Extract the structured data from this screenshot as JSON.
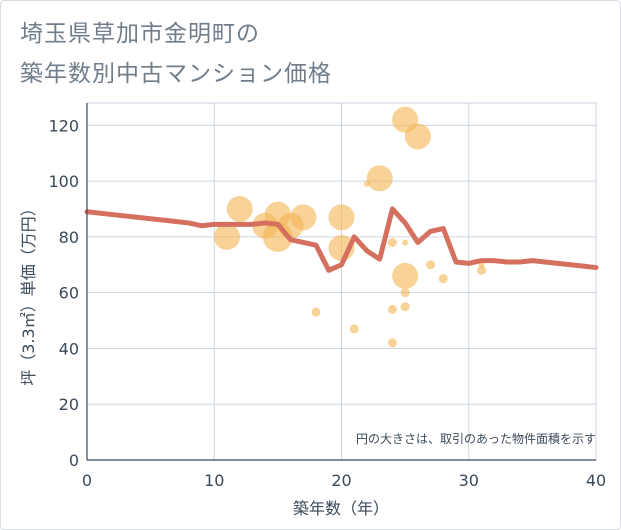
{
  "chart_data": {
    "type": "scatter",
    "title_lines": [
      "埼玉県草加市金明町の",
      "築年数別中古マンション価格"
    ],
    "xlabel": "築年数（年）",
    "ylabel": "坪（3.3㎡）単価（万円）",
    "xlim": [
      0,
      40
    ],
    "ylim": [
      0,
      128
    ],
    "xticks": [
      "0",
      "10",
      "20",
      "30",
      "40"
    ],
    "yticks": [
      "0",
      "20",
      "40",
      "60",
      "80",
      "100",
      "120"
    ],
    "grid": true,
    "annotation": "円の大きさは、取引のあった物件面積を示す",
    "colors": {
      "bubble": "#f3b756",
      "line": "#d5705f",
      "grid": "#ccd6e0",
      "axis": "#3b4a5a"
    },
    "bubbles": [
      {
        "x": 11,
        "y": 80,
        "s": 3
      },
      {
        "x": 12,
        "y": 90,
        "s": 3
      },
      {
        "x": 14,
        "y": 84,
        "s": 3
      },
      {
        "x": 15,
        "y": 88,
        "s": 3
      },
      {
        "x": 15,
        "y": 80,
        "s": 4
      },
      {
        "x": 16,
        "y": 84,
        "s": 3
      },
      {
        "x": 17,
        "y": 87,
        "s": 3
      },
      {
        "x": 18,
        "y": 53,
        "s": 1
      },
      {
        "x": 20,
        "y": 87,
        "s": 3
      },
      {
        "x": 20,
        "y": 76,
        "s": 3
      },
      {
        "x": 21,
        "y": 47,
        "s": 1
      },
      {
        "x": 22,
        "y": 99,
        "s": 0.5
      },
      {
        "x": 23,
        "y": 101,
        "s": 3
      },
      {
        "x": 24,
        "y": 78,
        "s": 1
      },
      {
        "x": 24,
        "y": 54,
        "s": 1
      },
      {
        "x": 24,
        "y": 42,
        "s": 1
      },
      {
        "x": 25,
        "y": 122,
        "s": 3
      },
      {
        "x": 25,
        "y": 66,
        "s": 3
      },
      {
        "x": 25,
        "y": 60,
        "s": 1
      },
      {
        "x": 25,
        "y": 55,
        "s": 1
      },
      {
        "x": 25,
        "y": 78,
        "s": 0.5
      },
      {
        "x": 26,
        "y": 116,
        "s": 3
      },
      {
        "x": 27,
        "y": 70,
        "s": 1
      },
      {
        "x": 28,
        "y": 65,
        "s": 1
      },
      {
        "x": 31,
        "y": 68,
        "s": 1
      },
      {
        "x": 31,
        "y": 70,
        "s": 0.5
      }
    ],
    "trend": {
      "x": [
        0,
        2,
        4,
        6,
        8,
        9,
        10,
        11,
        12,
        13,
        14,
        15,
        16,
        17,
        18,
        19,
        20,
        21,
        22,
        23,
        24,
        25,
        26,
        27,
        28,
        29,
        30,
        31,
        32,
        33,
        34,
        35,
        36,
        37,
        38,
        39,
        40
      ],
      "y": [
        89,
        88,
        87,
        86,
        85,
        84,
        84.5,
        84.5,
        84.5,
        84.5,
        85,
        84.5,
        79,
        78,
        77,
        68,
        70,
        80,
        75,
        72,
        90,
        85,
        78,
        82,
        83,
        71,
        70.5,
        71.5,
        71.5,
        71,
        71,
        71.5,
        71,
        70.5,
        70,
        69.5,
        69
      ]
    }
  }
}
